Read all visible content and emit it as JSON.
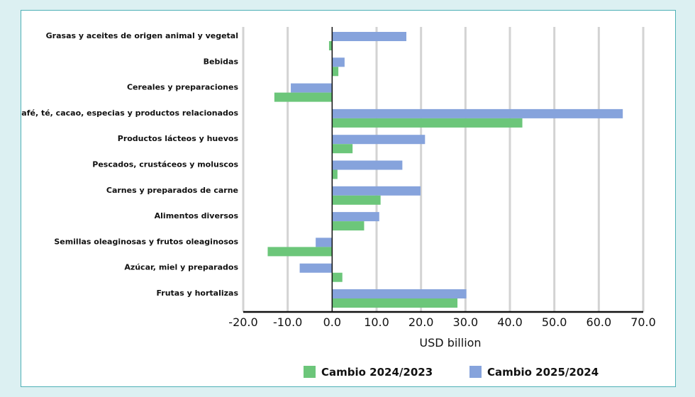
{
  "chart_data": {
    "type": "bar",
    "orientation": "horizontal",
    "title": "",
    "xlabel": "USD billion",
    "ylabel": "",
    "xlim": [
      -20,
      70
    ],
    "xticks": [
      -20,
      -10,
      0,
      10,
      20,
      30,
      40,
      50,
      60,
      70
    ],
    "xtick_labels": [
      "-20.0",
      "-10.0",
      "0.0",
      "10.0",
      "20.0",
      "30.0",
      "40.0",
      "50.0",
      "60.0",
      "70.0"
    ],
    "grid": "vertical",
    "legend_position": "bottom",
    "categories": [
      "Grasas y aceites de origen animal y vegetal",
      "Bebidas",
      "Cereales y preparaciones",
      "Café, té, cacao, especias y productos relacionados",
      "Productos lácteos y huevos",
      "Pescados, crustáceos y moluscos",
      "Carnes y preparados de carne",
      "Alimentos diversos",
      "Semillas oleaginosas y frutos oleaginosos",
      "Azúcar, miel y preparados",
      "Frutas y hortalizas"
    ],
    "series": [
      {
        "name": "Cambio 2024/2023",
        "color": "#6cc67a",
        "values": [
          -0.7,
          1.4,
          -13.0,
          42.8,
          4.6,
          1.2,
          10.9,
          7.2,
          -14.5,
          2.3,
          28.2
        ]
      },
      {
        "name": "Cambio 2025/2024",
        "color": "#86a3dc",
        "values": [
          16.7,
          2.8,
          -9.3,
          65.4,
          20.9,
          15.8,
          19.9,
          10.6,
          -3.7,
          -7.3,
          30.2
        ]
      }
    ]
  }
}
